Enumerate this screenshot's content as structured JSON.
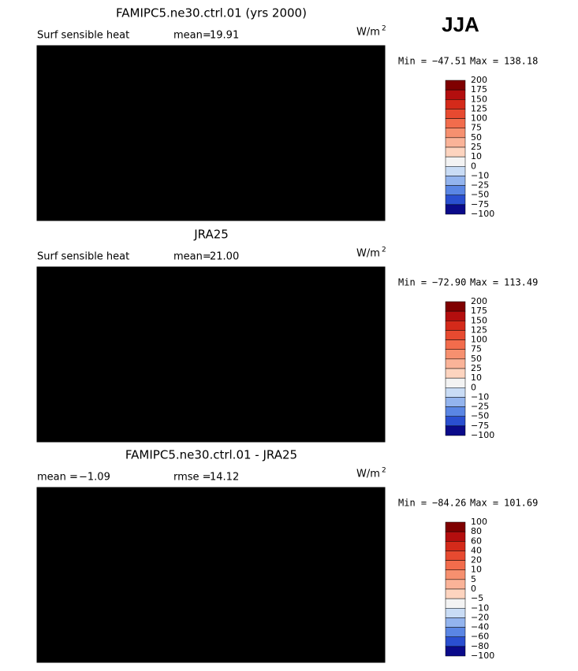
{
  "season": "JJA",
  "colorbar_colors": [
    "#7f0000",
    "#b30e0e",
    "#d42a1a",
    "#e74a30",
    "#f26c4c",
    "#f6906f",
    "#fab398",
    "#fdd4bf",
    "#f3f3f3",
    "#c9dcf5",
    "#93b4ee",
    "#5a86e4",
    "#2a4fd0",
    "#0a0a8a"
  ],
  "panels": [
    {
      "title": "FAMIPC5.ne30.ctrl.01 (yrs 2000)",
      "left_label": "Surf sensible heat",
      "stat_label": "mean=",
      "stat_value": "19.91",
      "units": "W/m",
      "units_exp": "2",
      "min_label": "Min =",
      "min": "−47.51",
      "max_label": "Max =",
      "max": "138.18",
      "colorbar_labels": [
        "200",
        "175",
        "150",
        "125",
        "100",
        "75",
        "50",
        "25",
        "10",
        "0",
        "−10",
        "−25",
        "−50",
        "−75",
        "−100"
      ]
    },
    {
      "title": "JRA25",
      "left_label": "Surf sensible heat",
      "stat_label": "mean=",
      "stat_value": "21.00",
      "units": "W/m",
      "units_exp": "2",
      "min_label": "Min =",
      "min": "−72.90",
      "max_label": "Max =",
      "max": "113.49",
      "colorbar_labels": [
        "200",
        "175",
        "150",
        "125",
        "100",
        "75",
        "50",
        "25",
        "10",
        "0",
        "−10",
        "−25",
        "−50",
        "−75",
        "−100"
      ]
    },
    {
      "title": "FAMIPC5.ne30.ctrl.01 - JRA25",
      "left_label": "mean =",
      "left_value": "−1.09",
      "stat_label": "rmse =",
      "stat_value": "14.12",
      "units": "W/m",
      "units_exp": "2",
      "min_label": "Min =",
      "min": "−84.26",
      "max_label": "Max =",
      "max": "101.69",
      "colorbar_labels": [
        "100",
        "80",
        "60",
        "40",
        "20",
        "10",
        "5",
        "0",
        "−5",
        "−10",
        "−20",
        "−40",
        "−60",
        "−80",
        "−100"
      ]
    }
  ]
}
